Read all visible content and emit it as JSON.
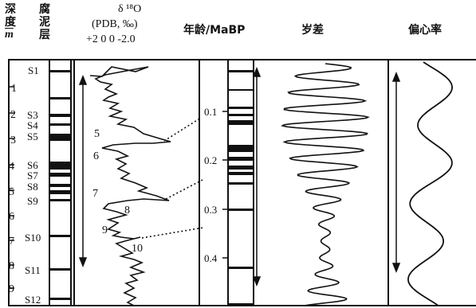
{
  "headers": {
    "depth": [
      "深",
      "度",
      "m"
    ],
    "paleosol": [
      "腐",
      "泥",
      "层"
    ],
    "delta_title": "δ ¹⁸O",
    "delta_unit": "(PDB, ‰)",
    "delta_ticks": [
      "+2",
      "0",
      "0",
      "-2.0"
    ],
    "age": "年龄/MaBP",
    "precession": "岁差",
    "eccentricity": "偏心率"
  },
  "depth_ticks": [
    "1",
    "2",
    "3",
    "4",
    "5",
    "6",
    "7",
    "8",
    "9"
  ],
  "sapropels": [
    "S1",
    "S3",
    "S4",
    "S5",
    "S6",
    "S7",
    "S8",
    "S9",
    "S10",
    "S11",
    "S12"
  ],
  "stages": [
    "5",
    "6",
    "7",
    "8",
    "9",
    "10"
  ],
  "age_ticks": [
    "0.1",
    "0.2",
    "0.3",
    "0.4"
  ],
  "colors": {
    "ink": "#111111",
    "background": "#ffffff"
  }
}
